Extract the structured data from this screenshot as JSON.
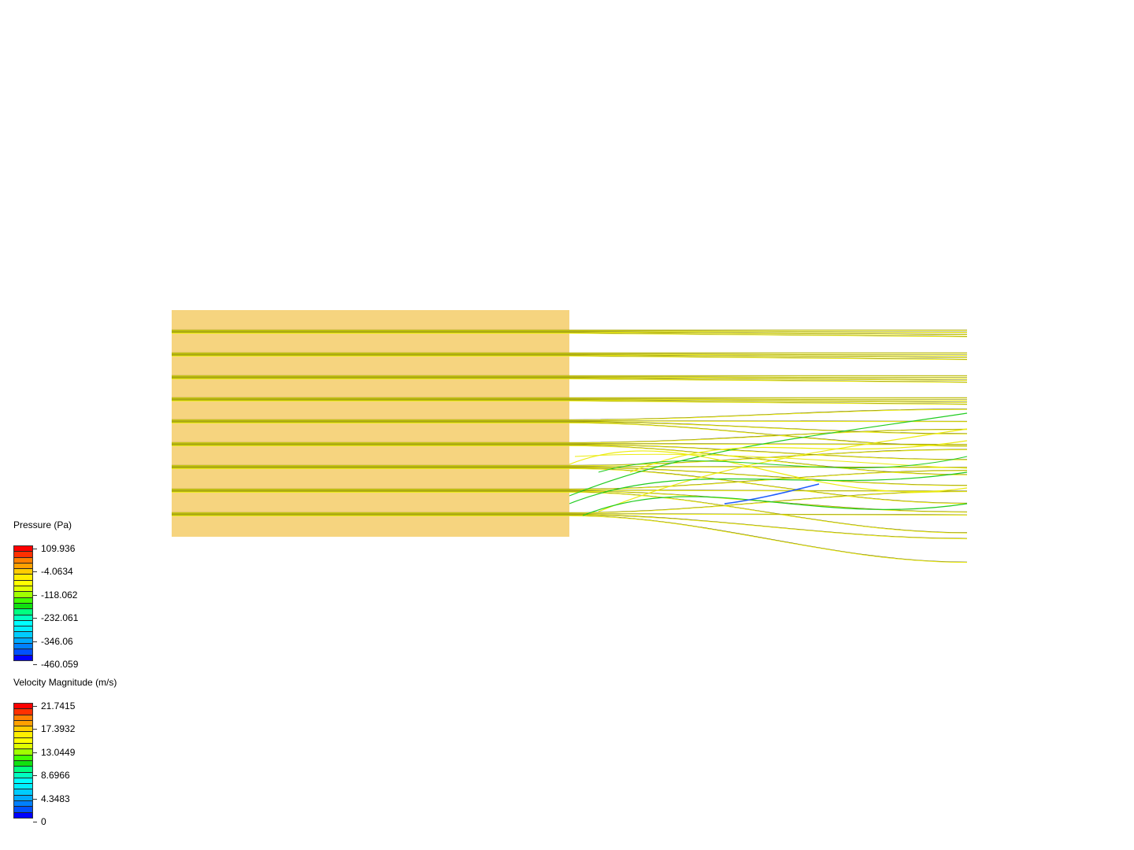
{
  "legends": [
    {
      "title": "Pressure (Pa)",
      "labels": [
        "109.936",
        "-4.0634",
        "-118.062",
        "-232.061",
        "-346.06",
        "-460.059"
      ]
    },
    {
      "title": "Velocity Magnitude (m/s)",
      "labels": [
        "21.7415",
        "17.3932",
        "13.0449",
        "8.6966",
        "4.3483",
        "0"
      ]
    }
  ],
  "colormap": [
    "#ff0000",
    "#ff3000",
    "#ff7f00",
    "#ffa000",
    "#ffcc00",
    "#ffee00",
    "#ffff00",
    "#e0ff00",
    "#a0ff00",
    "#40ff00",
    "#10e010",
    "#00ff80",
    "#00ffc0",
    "#00ffff",
    "#00eeff",
    "#00ccff",
    "#00aaff",
    "#0080ff",
    "#0050ff",
    "#0000ff"
  ],
  "colors": {
    "domain_fill": "#f6d47f",
    "streamline_main": "#ecec10",
    "streamline_slow": "#22cc22"
  }
}
